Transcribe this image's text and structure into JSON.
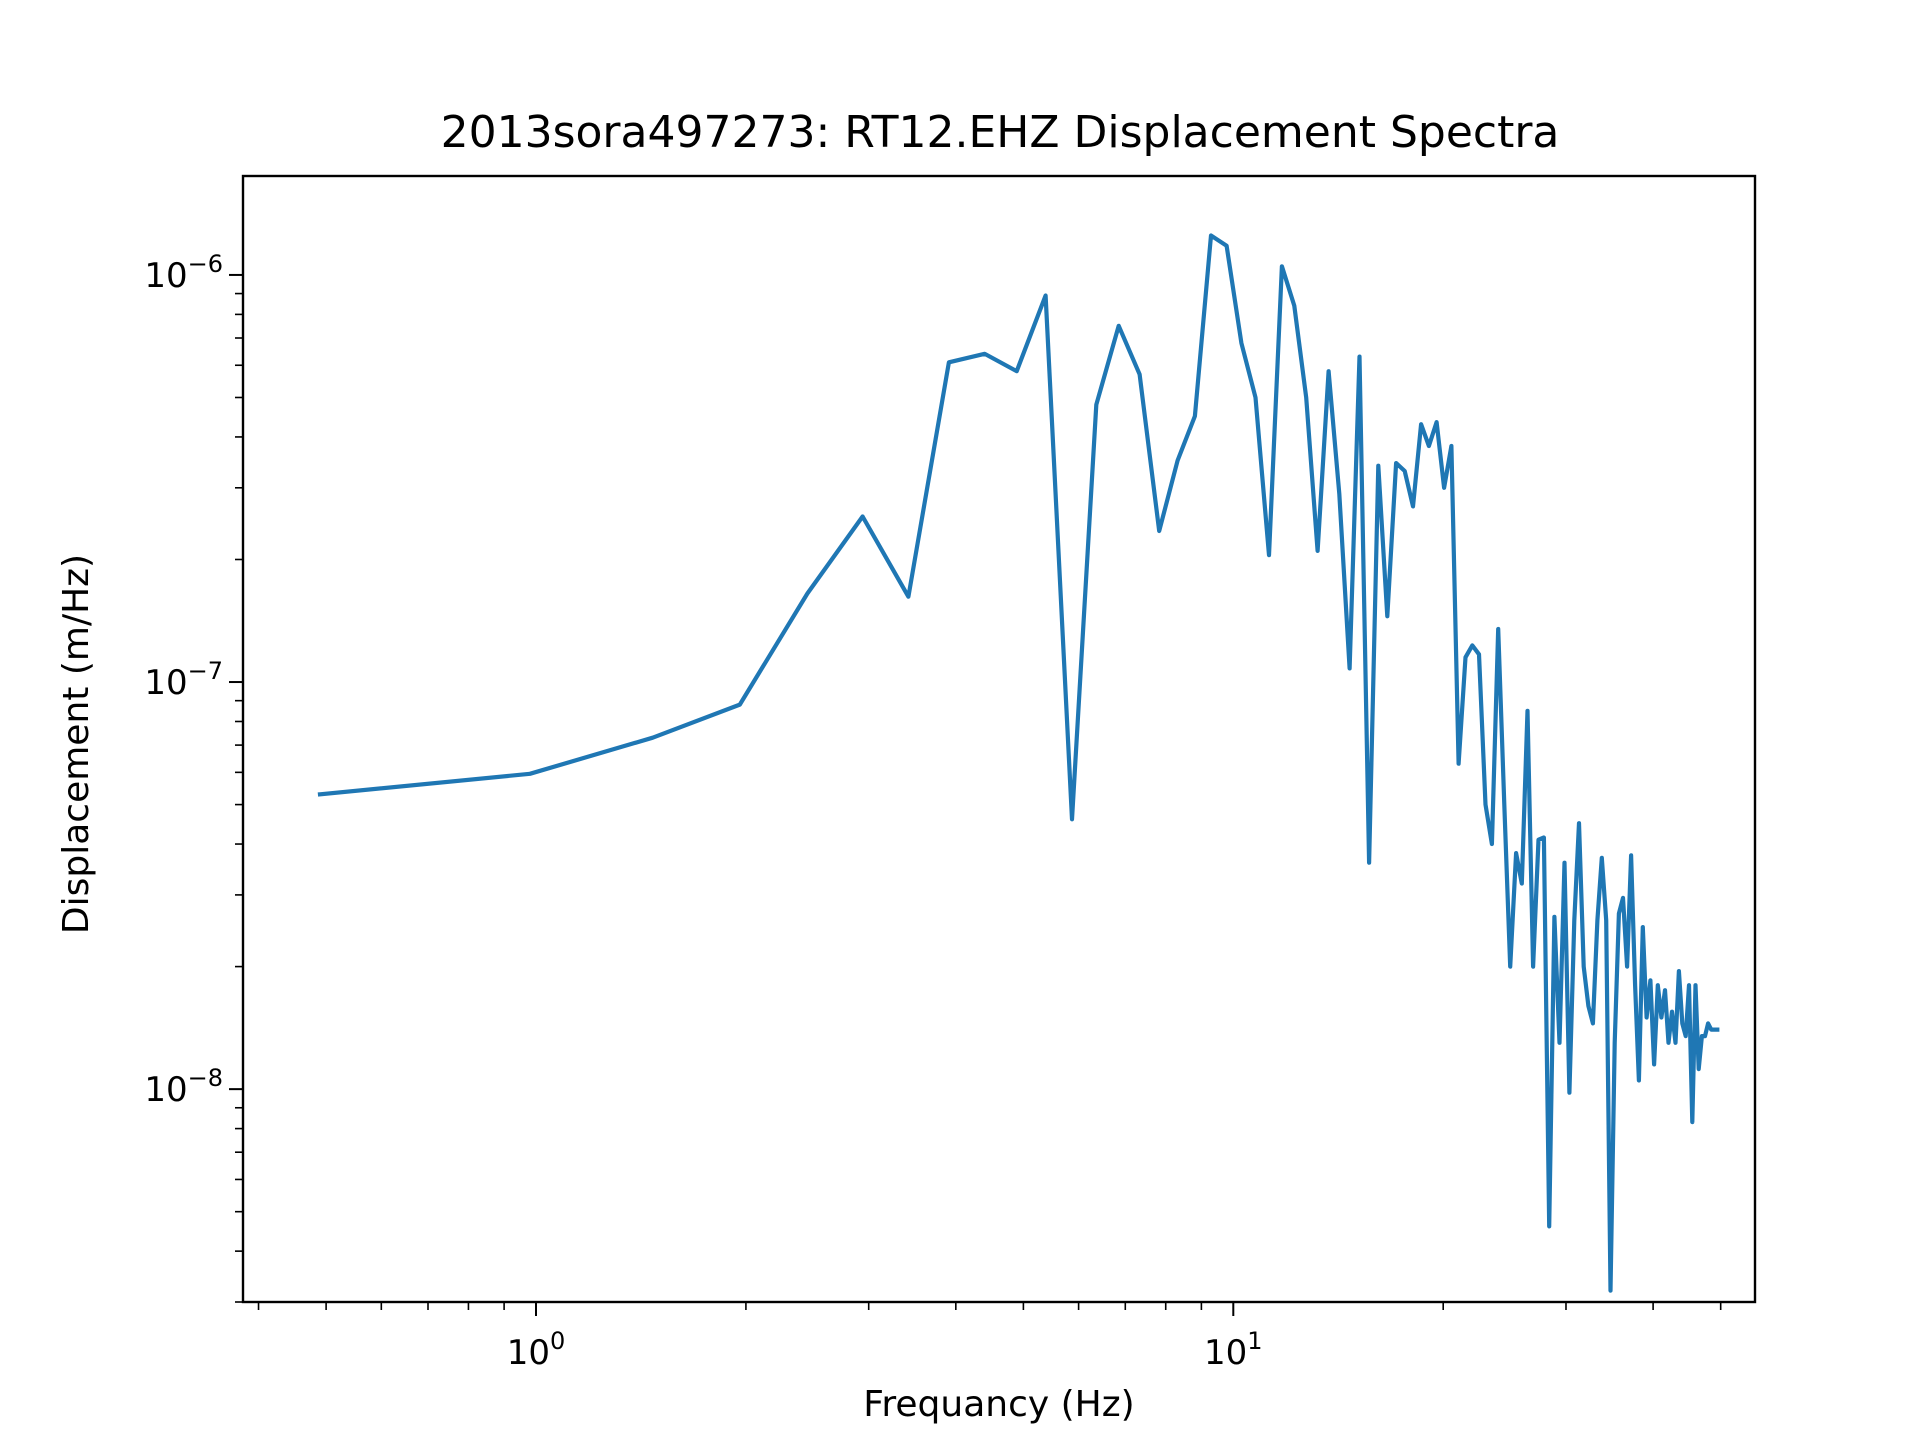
{
  "chart_data": {
    "type": "line",
    "title": "2013sora497273: RT12.EHZ Displacement Spectra",
    "xlabel": "Frequancy (Hz)",
    "ylabel": "Displacement (m/Hz)",
    "xscale": "log",
    "yscale": "log",
    "xlim": [
      0.38,
      56
    ],
    "ylim": [
      3e-09,
      1.75e-06
    ],
    "grid": false,
    "line_color": "#1f77b4",
    "x_major_ticks": [
      {
        "value": 1,
        "base": "10",
        "exp": "0"
      },
      {
        "value": 10,
        "base": "10",
        "exp": "1"
      }
    ],
    "y_major_ticks": [
      {
        "value": 1e-06,
        "base": "10",
        "exp": "−6"
      },
      {
        "value": 1e-07,
        "base": "10",
        "exp": "−7"
      },
      {
        "value": 1e-08,
        "base": "10",
        "exp": "−8"
      }
    ],
    "series": [
      {
        "x": [
          0.49,
          0.98,
          1.47,
          1.96,
          2.45,
          2.94,
          3.42,
          3.91,
          4.4,
          4.89,
          5.38,
          5.87,
          6.36,
          6.85,
          7.34,
          7.83,
          8.32,
          8.81,
          9.29,
          9.78,
          10.27,
          10.76,
          11.25,
          11.74,
          12.23,
          12.72,
          13.21,
          13.7,
          14.19,
          14.68,
          15.17,
          15.66,
          16.14,
          16.63,
          17.12,
          17.61,
          18.1,
          18.59,
          19.08,
          19.57,
          20.06,
          20.55,
          21.04,
          21.53,
          22.02,
          22.51,
          23.0,
          23.49,
          23.98,
          24.47,
          24.95,
          25.44,
          25.93,
          26.42,
          26.91,
          27.4,
          27.89,
          28.38,
          28.87,
          29.36,
          29.85,
          30.34,
          30.83,
          31.32,
          31.81,
          32.3,
          32.79,
          33.28,
          33.77,
          34.26,
          34.75,
          35.24,
          35.73,
          36.22,
          36.71,
          37.2,
          37.69,
          38.17,
          38.66,
          39.15,
          39.64,
          40.13,
          40.62,
          41.11,
          41.6,
          42.09,
          42.58,
          43.07,
          43.56,
          44.05,
          44.54,
          45.03,
          45.52,
          46.01,
          46.5,
          46.99,
          47.48,
          47.97,
          48.46,
          48.95,
          49.44
        ],
        "y": [
          5.3e-08,
          5.95e-08,
          7.3e-08,
          8.8e-08,
          1.65e-07,
          2.55e-07,
          1.62e-07,
          6.1e-07,
          6.4e-07,
          5.8e-07,
          8.9e-07,
          4.6e-08,
          4.8e-07,
          7.5e-07,
          5.7e-07,
          2.35e-07,
          3.5e-07,
          4.5e-07,
          1.25e-06,
          1.18e-06,
          6.8e-07,
          5e-07,
          2.05e-07,
          1.05e-06,
          8.4e-07,
          5e-07,
          2.1e-07,
          5.8e-07,
          2.9e-07,
          1.08e-07,
          6.3e-07,
          3.6e-08,
          3.4e-07,
          1.45e-07,
          3.45e-07,
          3.3e-07,
          2.7e-07,
          4.3e-07,
          3.8e-07,
          4.35e-07,
          3e-07,
          3.8e-07,
          6.3e-08,
          1.15e-07,
          1.23e-07,
          1.17e-07,
          5e-08,
          4e-08,
          1.35e-07,
          5e-08,
          2e-08,
          3.8e-08,
          3.2e-08,
          8.5e-08,
          2e-08,
          4.1e-08,
          4.15e-08,
          4.6e-09,
          2.65e-08,
          1.3e-08,
          3.6e-08,
          9.8e-09,
          2.6e-08,
          4.5e-08,
          2e-08,
          1.6e-08,
          1.45e-08,
          2.6e-08,
          3.7e-08,
          2.6e-08,
          3.2e-09,
          1.3e-08,
          2.7e-08,
          2.95e-08,
          2e-08,
          3.75e-08,
          1.8e-08,
          1.05e-08,
          2.5e-08,
          1.5e-08,
          1.85e-08,
          1.15e-08,
          1.8e-08,
          1.5e-08,
          1.75e-08,
          1.3e-08,
          1.55e-08,
          1.3e-08,
          1.95e-08,
          1.45e-08,
          1.35e-08,
          1.8e-08,
          8.3e-09,
          1.8e-08,
          1.12e-08,
          1.35e-08,
          1.35e-08,
          1.45e-08,
          1.4e-08,
          1.4e-08,
          1.4e-08
        ]
      }
    ]
  }
}
